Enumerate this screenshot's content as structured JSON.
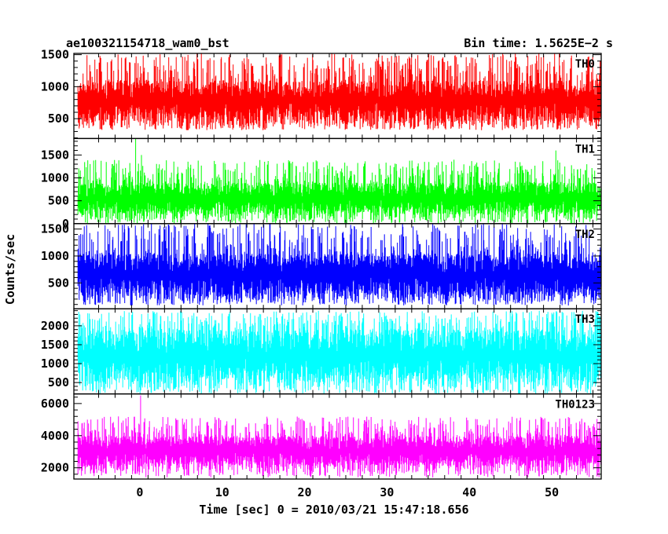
{
  "chart_data": {
    "type": "line",
    "title_left": "ae100321154718_wam0_bst",
    "title_right": "Bin time: 1.5625E−2 s",
    "xlabel": "Time [sec] 0 = 2010/03/21 15:47:18.656",
    "ylabel": "Counts/sec",
    "xlim": [
      -8,
      56
    ],
    "x_ticks": [
      0,
      10,
      20,
      30,
      40,
      50
    ],
    "x_tick_labels": [
      "0",
      "10",
      "20",
      "30",
      "40",
      "50"
    ],
    "data_x_range": [
      -7.5,
      56
    ],
    "panels": [
      {
        "name": "TH0",
        "color": "#ff0000",
        "ylim": [
          190,
          1520
        ],
        "ticks": [
          500,
          1000,
          1500
        ],
        "tick_labels": [
          "500",
          "1000",
          "1500"
        ],
        "band": [
          320,
          1520
        ],
        "typical_range": [
          450,
          1100
        ]
      },
      {
        "name": "TH1",
        "color": "#00ff00",
        "ylim": [
          0,
          1860
        ],
        "ticks": [
          0,
          500,
          1000,
          1500
        ],
        "tick_labels": [
          "0",
          "500",
          "1000",
          "1500"
        ],
        "band": [
          0,
          1400
        ],
        "typical_range": [
          200,
          900
        ],
        "peaks": [
          {
            "x": -0.5,
            "y": 1860
          },
          {
            "x": 0.2,
            "y": 1500
          },
          {
            "x": 50.5,
            "y": 1600
          }
        ]
      },
      {
        "name": "TH2",
        "color": "#0000ff",
        "ylim": [
          20,
          1600
        ],
        "ticks": [
          500,
          1000,
          1500
        ],
        "tick_labels": [
          "500",
          "1000",
          "1500"
        ],
        "band": [
          80,
          1600
        ],
        "typical_range": [
          250,
          1050
        ]
      },
      {
        "name": "TH3",
        "color": "#00ffff",
        "ylim": [
          200,
          2450
        ],
        "ticks": [
          500,
          1000,
          1500,
          2000
        ],
        "tick_labels": [
          "500",
          "1000",
          "1500",
          "2000"
        ],
        "band": [
          200,
          2400
        ],
        "typical_range": [
          500,
          1900
        ]
      },
      {
        "name": "TH0123",
        "color": "#ff00ff",
        "ylim": [
          1300,
          6600
        ],
        "ticks": [
          2000,
          4000,
          6000
        ],
        "tick_labels": [
          "2000",
          "4000",
          "6000"
        ],
        "band": [
          1400,
          5200
        ],
        "typical_range": [
          2100,
          4000
        ],
        "peaks": [
          {
            "x": 0.1,
            "y": 6500
          }
        ]
      }
    ]
  }
}
